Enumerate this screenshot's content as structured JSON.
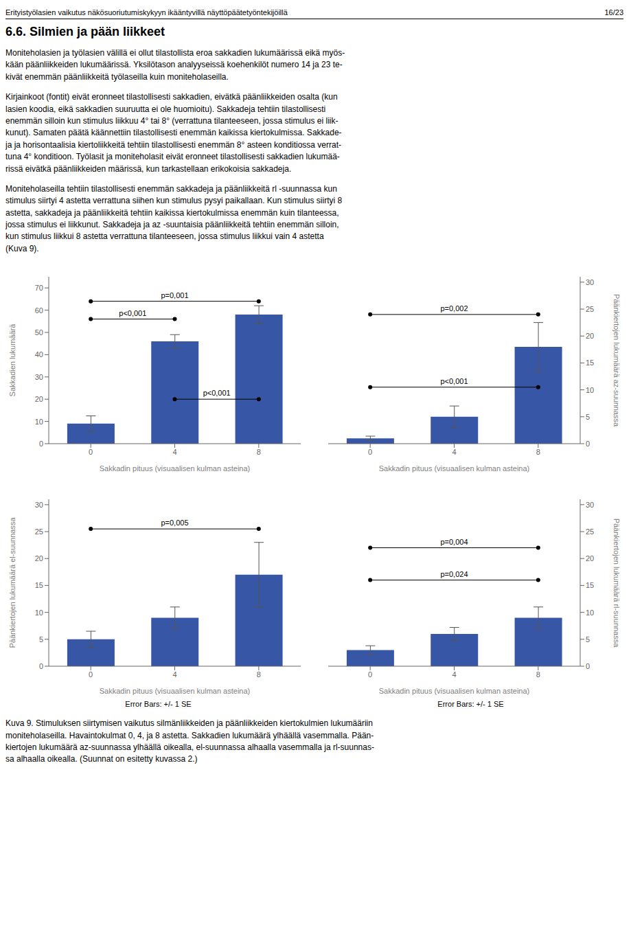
{
  "title": "6.6. Silmien ja pään liikkeet",
  "annotations": [
    "Erityistyölasien vaikutus näkösuoriutumiskykyyn ikääntyvillä näyttöpäätetyöntekijöillä",
    "16/23",
    "Moniteholasien ja työlasien välillä ei ollut tilastollista eroa sakkadien lukumäärissä eikä myös-\nkään päänliikkeiden lukumäärissä. Yksilötason analyyseissä koehenkilöt numero 14 ja 23 te-\nkivät enemmän päänliikkeitä työlaseilla kuin moniteholaseilla.",
    "Kirjainkoot (fontit) eivät eronneet tilastollisesti sakkadien, eivätkä päänliikkeiden osalta (kun\nlasien koodia, eikä sakkadien suuruutta ei ole huomioitu). Sakkadeja tehtiin tilastollisesti\nenemmän silloin kun stimulus liikkuu 4° tai 8° (verrattuna tilanteeseen, jossa stimulus ei liik-\nkunut). Samaten päätä käännettiin tilastollisesti enemmän kaikissa kiertokulmissa. Sakkade-\nja ja horisontaalisia kiertoliikkeitä tehtiin tilastollisesti enemmän 8° asteen konditiossa verrat-\ntuna 4° konditioon. Työlasit ja moniteholasit eivät eronneet tilastollisesti sakkadien lukumää-\nrissä eivätkä päänliikkeiden määrissä, kun tarkastellaan erikokoisia sakkadeja.",
    "Moniteholaseilla tehtiin tilastollisesti enemmän sakkadeja ja päänliikkeitä rl -suunnassa kun\nstimulus siirtyi 4 astetta verrattuna siihen kun stimulus pysyi paikallaan. Kun stimulus siirtyi 8\nastetta, sakkadeja ja päänliikkeitä tehtiin kaikissa kiertokulmissa enemmän kuin tilanteessa,\njossa stimulus ei liikkunut. Sakkadeja ja az -suuntaisia päänliikkeitä tehtiin enemmän silloin,\nkun stimulus liikkui 8 astetta verrattuna tilanteeseen, jossa stimulus liikkui vain 4 astetta\n(Kuva 9).",
    "Kuva 9. Stimuluksen siirtymisen vaikutus silmänliikkeiden ja päänliikkeiden kiertokulmien lukumääriin\nmoniteholaseilla. Havaintokulmat 0, 4, ja 8 astetta. Sakkadien lukumäärä ylhäällä vasemmalla. Pään-\nkiertojen lukumäärä az-suunnassa ylhäällä oikealla, el-suunnassa alhaalla vasemmalla ja rl-suunnas-\nsa alhaalla oikealla. (Suunnat on esitetty kuvassa 2.)"
  ],
  "chart_data": [
    {
      "type": "bar",
      "ylabel": "Sakkadien lukumäärä",
      "ylabel_side": "left",
      "xlabel": "Sakkadin pituus (visuaalisen kulman asteina)",
      "categories": [
        "0",
        "4",
        "8"
      ],
      "values": [
        9,
        46,
        58
      ],
      "errors": [
        3.5,
        3,
        4
      ],
      "color": "#3757a6",
      "ylim": [
        0,
        75
      ],
      "yticks": [
        0,
        10,
        20,
        30,
        40,
        50,
        60,
        70
      ],
      "grid": false,
      "sig_lines": [
        {
          "from": "0",
          "to": "4",
          "y": 56,
          "label": "p<0,001"
        },
        {
          "from": "0",
          "to": "8",
          "y": 64,
          "label": "p=0,001"
        },
        {
          "from": "4",
          "to": "8",
          "y": 20,
          "label": "p<0,001"
        }
      ]
    },
    {
      "type": "bar",
      "ylabel": "Päänkiertojen lukumäärä az-suunnassa",
      "ylabel_side": "right",
      "xlabel": "Sakkadin pituus (visuaalisen kulman asteina)",
      "categories": [
        "0",
        "4",
        "8"
      ],
      "values": [
        1,
        5,
        18
      ],
      "errors": [
        0.4,
        2,
        4.5
      ],
      "color": "#3757a6",
      "ylim": [
        0,
        31
      ],
      "yticks": [
        0,
        5,
        10,
        15,
        20,
        25,
        30
      ],
      "grid": false,
      "sig_lines": [
        {
          "from": "0",
          "to": "8",
          "y": 24,
          "label": "p=0,002"
        },
        {
          "from": "0",
          "to": "8",
          "y": 10.5,
          "label": "p<0,001"
        }
      ]
    },
    {
      "type": "bar",
      "ylabel": "Päänkiertojen lukumäärä el-suunnassa",
      "ylabel_side": "left",
      "xlabel": "Sakkadin pituus (visuaalisen kulman asteina)",
      "categories": [
        "0",
        "4",
        "8"
      ],
      "values": [
        5,
        9,
        17
      ],
      "errors": [
        1.5,
        2,
        6
      ],
      "color": "#3757a6",
      "ylim": [
        0,
        31
      ],
      "yticks": [
        0,
        5,
        10,
        15,
        20,
        25,
        30
      ],
      "grid": false,
      "sig_lines": [
        {
          "from": "0",
          "to": "8",
          "y": 25.5,
          "label": "p=0,005"
        }
      ],
      "annotations": [
        "Error Bars: +/- 1 SE"
      ]
    },
    {
      "type": "bar",
      "ylabel": "Päänkiertojen lukumäärä rl-suunnassa",
      "ylabel_side": "right",
      "xlabel": "Sakkadin pituus (visuaalisen kulman asteina)",
      "categories": [
        "0",
        "4",
        "8"
      ],
      "values": [
        3,
        6,
        9
      ],
      "errors": [
        0.8,
        1.2,
        2
      ],
      "color": "#3757a6",
      "ylim": [
        0,
        31
      ],
      "yticks": [
        0,
        5,
        10,
        15,
        20,
        25,
        30
      ],
      "grid": false,
      "sig_lines": [
        {
          "from": "0",
          "to": "8",
          "y": 22,
          "label": "p=0,004"
        },
        {
          "from": "0",
          "to": "8",
          "y": 16,
          "label": "p=0,024"
        }
      ],
      "annotations": [
        "Error Bars: +/- 1 SE"
      ]
    }
  ]
}
